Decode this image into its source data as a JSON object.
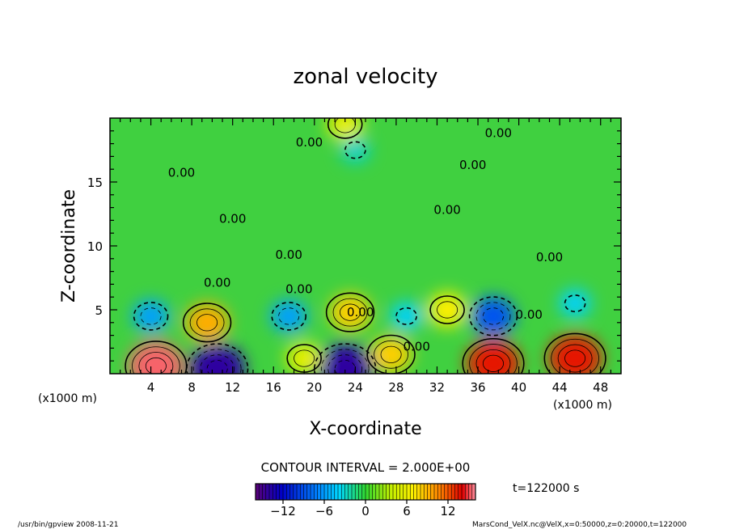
{
  "chart_data": {
    "type": "heatmap",
    "title": "zonal velocity",
    "xlabel": "X-coordinate",
    "ylabel": "Z-coordinate",
    "x_unit_left": "(x1000 m)",
    "x_unit_right": "(x1000 m)",
    "y_unit": "(x1000 m)",
    "xlim": [
      0,
      50
    ],
    "ylim": [
      0,
      20
    ],
    "x_ticks": [
      4,
      8,
      12,
      16,
      20,
      24,
      28,
      32,
      36,
      40,
      44,
      48
    ],
    "y_ticks": [
      5,
      10,
      15
    ],
    "contour_interval_text": "CONTOUR INTERVAL = 2.000E+00",
    "contour_label": "0.00",
    "time_label": "t=122000 s",
    "colorbar": {
      "min": -16,
      "max": 16,
      "ticks": [
        -12,
        -6,
        0,
        6,
        12
      ]
    },
    "features": [
      {
        "x": 4.5,
        "z": 0.6,
        "value": 15
      },
      {
        "x": 9.5,
        "z": 4.0,
        "value": 9
      },
      {
        "x": 10.5,
        "z": 0.4,
        "value": -14
      },
      {
        "x": 4.0,
        "z": 4.5,
        "value": -6
      },
      {
        "x": 17.5,
        "z": 4.5,
        "value": -6
      },
      {
        "x": 23.0,
        "z": 0.4,
        "value": -14
      },
      {
        "x": 23.5,
        "z": 4.8,
        "value": 8
      },
      {
        "x": 27.5,
        "z": 1.5,
        "value": 8
      },
      {
        "x": 29.0,
        "z": 4.5,
        "value": -4
      },
      {
        "x": 33.0,
        "z": 5.0,
        "value": 7
      },
      {
        "x": 37.5,
        "z": 4.5,
        "value": -9
      },
      {
        "x": 37.5,
        "z": 0.8,
        "value": 13
      },
      {
        "x": 45.5,
        "z": 1.2,
        "value": 13
      },
      {
        "x": 45.5,
        "z": 5.5,
        "value": -4
      },
      {
        "x": 19.0,
        "z": 1.2,
        "value": 6
      },
      {
        "x": 23.0,
        "z": 19.5,
        "value": 6
      },
      {
        "x": 24.0,
        "z": 17.5,
        "value": -3
      }
    ],
    "contour_labels": [
      {
        "x": 19.5,
        "z": 17.8
      },
      {
        "x": 38.0,
        "z": 18.5
      },
      {
        "x": 35.5,
        "z": 16.0
      },
      {
        "x": 7.0,
        "z": 15.4
      },
      {
        "x": 12.0,
        "z": 11.8
      },
      {
        "x": 33.0,
        "z": 12.5
      },
      {
        "x": 17.5,
        "z": 9.0
      },
      {
        "x": 43.0,
        "z": 8.8
      },
      {
        "x": 10.5,
        "z": 6.8
      },
      {
        "x": 18.5,
        "z": 6.3
      },
      {
        "x": 24.5,
        "z": 4.5
      },
      {
        "x": 30.0,
        "z": 1.8
      },
      {
        "x": 41.0,
        "z": 4.3
      }
    ]
  },
  "footer": {
    "left": "/usr/bin/gpview  2008-11-21",
    "right": "MarsCond_VelX.nc@VelX,x=0:50000,z=0:20000,t=122000"
  }
}
